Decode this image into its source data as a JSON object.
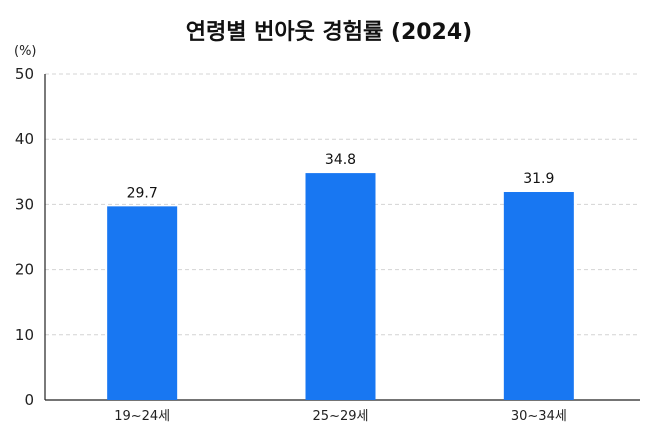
{
  "chart_data": {
    "type": "bar",
    "title": "연령별 번아웃 경험률 (2024)",
    "ylabel": "(%)",
    "xlabel": "",
    "categories": [
      "19~24세",
      "25~29세",
      "30~34세"
    ],
    "values": [
      29.7,
      34.8,
      31.9
    ],
    "data_labels": [
      "29.7",
      "34.8",
      "31.9"
    ],
    "ylim": [
      0,
      50
    ],
    "yticks": [
      0,
      10,
      20,
      30,
      40,
      50
    ],
    "grid": true,
    "grid_style": "dashed",
    "bar_color": "#1877F2"
  }
}
